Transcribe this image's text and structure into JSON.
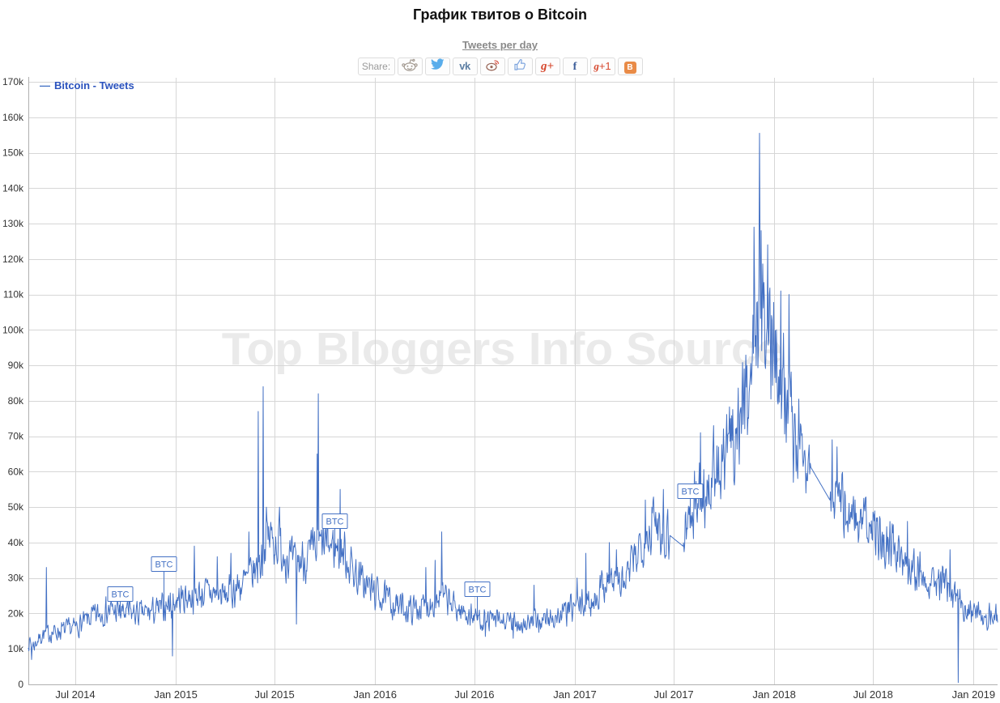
{
  "page": {
    "title": "График твитов о Bitcoin",
    "subtitle": "Tweets per day"
  },
  "share": {
    "label": "Share:",
    "buttons": [
      {
        "id": "reddit",
        "icon": "reddit-icon"
      },
      {
        "id": "twitter",
        "icon": "twitter-icon"
      },
      {
        "id": "vk",
        "icon": "vk-icon"
      },
      {
        "id": "weibo",
        "icon": "weibo-icon"
      },
      {
        "id": "like",
        "icon": "thumbs-up-icon"
      },
      {
        "id": "google-plus",
        "icon": "google-plus-icon"
      },
      {
        "id": "facebook",
        "icon": "facebook-icon"
      },
      {
        "id": "google-plus-one",
        "icon": "google-plus-one-icon"
      },
      {
        "id": "blogger",
        "icon": "blogger-icon"
      }
    ]
  },
  "legend": {
    "items": [
      {
        "label": "Bitcoin - Tweets",
        "color": "#2a52bd"
      }
    ]
  },
  "watermark": "Top Bloggers Info Source",
  "colors": {
    "series": "#4471c4",
    "legend_text": "#2a52bd",
    "grid": "#d6d6d6",
    "axis": "#b0b0b0",
    "tick_text": "#333333",
    "flag": "#4471c4"
  },
  "chart_data": {
    "type": "line",
    "title": "График твитов о Bitcoin",
    "subtitle": "Tweets per day",
    "series_name": "Bitcoin - Tweets",
    "unit": "tweets per day",
    "legend_position": "top-left",
    "grid": true,
    "ylim": [
      0,
      170000
    ],
    "x_domain": [
      "2014-04-06",
      "2019-02-14"
    ],
    "y_ticks": [
      {
        "value": 0,
        "label": "0"
      },
      {
        "value": 10000,
        "label": "10k"
      },
      {
        "value": 20000,
        "label": "20k"
      },
      {
        "value": 30000,
        "label": "30k"
      },
      {
        "value": 40000,
        "label": "40k"
      },
      {
        "value": 50000,
        "label": "50k"
      },
      {
        "value": 60000,
        "label": "60k"
      },
      {
        "value": 70000,
        "label": "70k"
      },
      {
        "value": 80000,
        "label": "80k"
      },
      {
        "value": 90000,
        "label": "90k"
      },
      {
        "value": 100000,
        "label": "100k"
      },
      {
        "value": 110000,
        "label": "110k"
      },
      {
        "value": 120000,
        "label": "120k"
      },
      {
        "value": 130000,
        "label": "130k"
      },
      {
        "value": 140000,
        "label": "140k"
      },
      {
        "value": 150000,
        "label": "150k"
      },
      {
        "value": 160000,
        "label": "160k"
      },
      {
        "value": 170000,
        "label": "170k"
      }
    ],
    "x_ticks": [
      {
        "date": "2014-07-01",
        "label": "Jul 2014"
      },
      {
        "date": "2015-01-01",
        "label": "Jan 2015"
      },
      {
        "date": "2015-07-01",
        "label": "Jul 2015"
      },
      {
        "date": "2016-01-01",
        "label": "Jan 2016"
      },
      {
        "date": "2016-07-01",
        "label": "Jul 2016"
      },
      {
        "date": "2017-01-01",
        "label": "Jan 2017"
      },
      {
        "date": "2017-07-01",
        "label": "Jul 2017"
      },
      {
        "date": "2018-01-01",
        "label": "Jan 2018"
      },
      {
        "date": "2018-07-01",
        "label": "Jul 2018"
      },
      {
        "date": "2019-01-01",
        "label": "Jan 2019"
      }
    ],
    "anchors": [
      [
        "2014-04-06",
        12000
      ],
      [
        "2014-04-16",
        11000
      ],
      [
        "2014-05-01",
        14000
      ],
      [
        "2014-06-01",
        15000
      ],
      [
        "2014-07-01",
        16000
      ],
      [
        "2014-08-01",
        19000
      ],
      [
        "2014-09-01",
        21000
      ],
      [
        "2014-10-01",
        20000
      ],
      [
        "2014-11-01",
        20000
      ],
      [
        "2014-12-01",
        21000
      ],
      [
        "2015-01-05",
        24000
      ],
      [
        "2015-02-01",
        25000
      ],
      [
        "2015-03-01",
        26000
      ],
      [
        "2015-04-01",
        25000
      ],
      [
        "2015-05-01",
        28000
      ],
      [
        "2015-06-01",
        33000
      ],
      [
        "2015-06-20",
        42000
      ],
      [
        "2015-07-05",
        40000
      ],
      [
        "2015-07-20",
        37000
      ],
      [
        "2015-08-05",
        34000
      ],
      [
        "2015-09-01",
        36000
      ],
      [
        "2015-10-01",
        40000
      ],
      [
        "2015-11-01",
        38000
      ],
      [
        "2015-12-01",
        30000
      ],
      [
        "2016-01-01",
        26000
      ],
      [
        "2016-02-01",
        23000
      ],
      [
        "2016-03-01",
        21000
      ],
      [
        "2016-04-01",
        22000
      ],
      [
        "2016-05-01",
        25000
      ],
      [
        "2016-06-01",
        21000
      ],
      [
        "2016-07-01",
        19000
      ],
      [
        "2016-08-01",
        18000
      ],
      [
        "2016-09-01",
        17500
      ],
      [
        "2016-10-01",
        17000
      ],
      [
        "2016-11-01",
        18000
      ],
      [
        "2016-12-01",
        19000
      ],
      [
        "2017-01-01",
        22000
      ],
      [
        "2017-02-01",
        23000
      ],
      [
        "2017-03-01",
        30000
      ],
      [
        "2017-04-01",
        28000
      ],
      [
        "2017-05-01",
        40000
      ],
      [
        "2017-06-01",
        46000
      ],
      [
        "2017-06-24",
        42000
      ],
      [
        "2017-07-18",
        39000
      ],
      [
        "2017-08-01",
        50000
      ],
      [
        "2017-09-01",
        55000
      ],
      [
        "2017-10-01",
        62000
      ],
      [
        "2017-11-01",
        76000
      ],
      [
        "2017-11-20",
        88000
      ],
      [
        "2017-12-04",
        110000
      ],
      [
        "2017-12-15",
        100000
      ],
      [
        "2018-01-05",
        95000
      ],
      [
        "2018-01-20",
        85000
      ],
      [
        "2018-02-10",
        70000
      ],
      [
        "2018-03-10",
        61000
      ],
      [
        "2018-04-13",
        52000
      ],
      [
        "2018-05-01",
        52000
      ],
      [
        "2018-06-01",
        47000
      ],
      [
        "2018-07-01",
        43000
      ],
      [
        "2018-08-01",
        40000
      ],
      [
        "2018-09-01",
        35000
      ],
      [
        "2018-10-01",
        31000
      ],
      [
        "2018-11-01",
        29000
      ],
      [
        "2018-12-01",
        24000
      ],
      [
        "2019-01-01",
        20000
      ],
      [
        "2019-02-14",
        19000
      ]
    ],
    "spikes": [
      [
        "2014-04-12",
        7000
      ],
      [
        "2014-05-09",
        33000
      ],
      [
        "2014-10-08",
        27000
      ],
      [
        "2014-12-26",
        8000
      ],
      [
        "2015-02-04",
        39000
      ],
      [
        "2015-03-18",
        36000
      ],
      [
        "2015-04-12",
        37000
      ],
      [
        "2015-05-15",
        43000
      ],
      [
        "2015-06-01",
        77000
      ],
      [
        "2015-06-10",
        84000
      ],
      [
        "2015-06-16",
        50000
      ],
      [
        "2015-07-10",
        50000
      ],
      [
        "2015-08-10",
        17000
      ],
      [
        "2015-09-17",
        65000
      ],
      [
        "2015-09-19",
        82000
      ],
      [
        "2015-10-29",
        55000
      ],
      [
        "2016-04-03",
        33000
      ],
      [
        "2016-04-20",
        35000
      ],
      [
        "2016-05-02",
        43000
      ],
      [
        "2016-07-21",
        13500
      ],
      [
        "2016-09-10",
        13000
      ],
      [
        "2016-10-18",
        28000
      ],
      [
        "2017-01-05",
        30000
      ],
      [
        "2017-01-21",
        37000
      ],
      [
        "2017-03-05",
        40000
      ],
      [
        "2017-03-18",
        38000
      ],
      [
        "2017-05-10",
        52000
      ],
      [
        "2017-05-22",
        50000
      ],
      [
        "2017-06-12",
        55000
      ],
      [
        "2017-08-19",
        71000
      ],
      [
        "2017-09-12",
        73000
      ],
      [
        "2017-10-13",
        75000
      ],
      [
        "2017-11-12",
        90000
      ],
      [
        "2017-11-25",
        129000
      ],
      [
        "2017-12-05",
        155500
      ],
      [
        "2017-12-08",
        128000
      ],
      [
        "2017-12-20",
        124000
      ],
      [
        "2018-01-13",
        111000
      ],
      [
        "2018-01-28",
        110000
      ],
      [
        "2018-02-05",
        57000
      ],
      [
        "2018-04-17",
        69000
      ],
      [
        "2018-04-26",
        67000
      ],
      [
        "2018-09-02",
        46000
      ],
      [
        "2018-11-19",
        38000
      ],
      [
        "2018-12-04",
        500
      ]
    ],
    "smooth_ranges": [
      [
        "2017-06-24",
        "2017-07-18"
      ],
      [
        "2018-03-10",
        "2018-04-13"
      ]
    ],
    "noise": {
      "seed": 7,
      "rel_amplitude": 0.16
    },
    "flags": [
      {
        "date": "2014-09-21",
        "label": "BTC",
        "anchor_value": 23500
      },
      {
        "date": "2014-12-10",
        "label": "BTC",
        "anchor_value": 32000
      },
      {
        "date": "2015-10-19",
        "label": "BTC",
        "anchor_value": 44000
      },
      {
        "date": "2016-07-06",
        "label": "BTC",
        "anchor_value": 25000
      },
      {
        "date": "2017-07-31",
        "label": "BTC",
        "anchor_value": 52500
      }
    ]
  }
}
